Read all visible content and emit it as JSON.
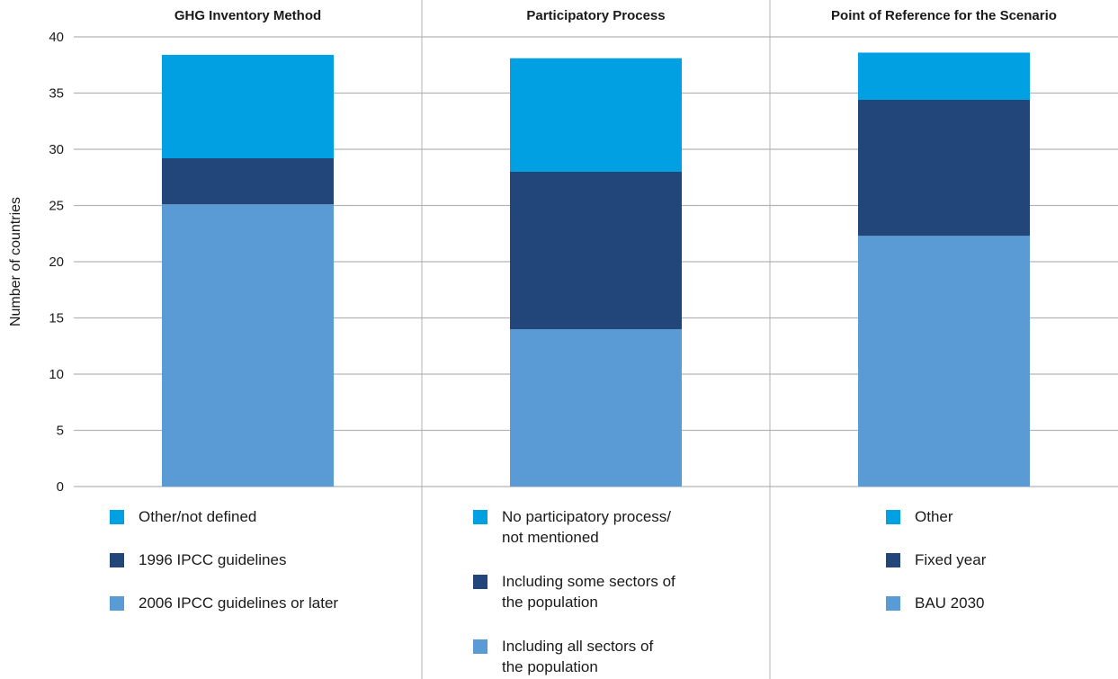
{
  "chart_data": {
    "type": "bar",
    "stacked": true,
    "ylabel": "Number of countries",
    "ylim": [
      0,
      40
    ],
    "yticks": [
      0,
      5,
      10,
      15,
      20,
      25,
      30,
      35,
      40
    ],
    "grid": true,
    "legend_position": "bottom",
    "panels": [
      {
        "title": "GHG Inventory Method",
        "series": [
          {
            "name": "2006 IPCC guidelines or later",
            "value": 25.1,
            "color": "#5b9bd5"
          },
          {
            "name": "1996 IPCC guidelines",
            "value": 4.1,
            "color": "#22467a"
          },
          {
            "name": "Other/not defined",
            "value": 9.2,
            "color": "#00a0e3"
          }
        ]
      },
      {
        "title": "Participatory Process",
        "series": [
          {
            "name": "Including all sectors of\nthe population",
            "value": 14.0,
            "color": "#5b9bd5"
          },
          {
            "name": "Including some sectors of\nthe population",
            "value": 14.0,
            "color": "#22467a"
          },
          {
            "name": "No participatory process/\nnot mentioned",
            "value": 10.1,
            "color": "#00a0e3"
          }
        ]
      },
      {
        "title": "Point of Reference for the Scenario",
        "series": [
          {
            "name": "BAU 2030",
            "value": 22.3,
            "color": "#5b9bd5"
          },
          {
            "name": "Fixed year",
            "value": 12.1,
            "color": "#22467a"
          },
          {
            "name": "Other",
            "value": 4.2,
            "color": "#00a0e3"
          }
        ]
      }
    ]
  }
}
